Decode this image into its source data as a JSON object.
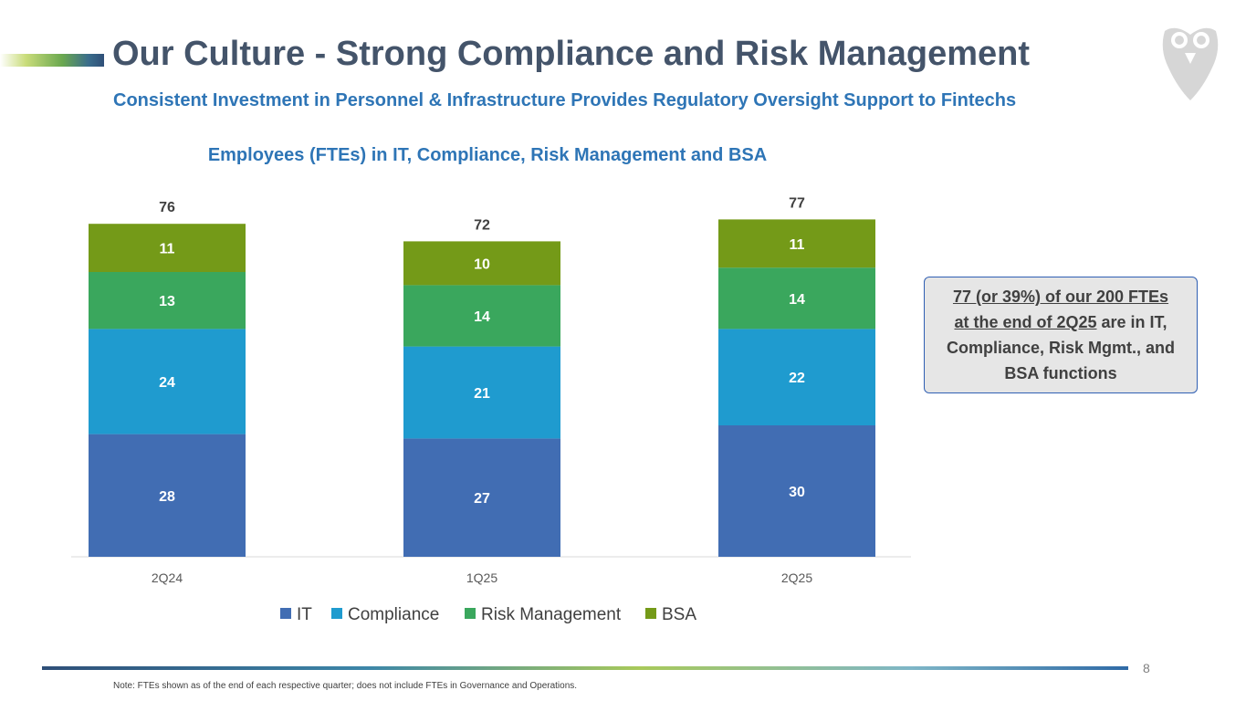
{
  "header": {
    "title": "Our Culture - Strong Compliance and Risk Management",
    "subtitle": "Consistent Investment in Personnel & Infrastructure Provides Regulatory Oversight Support to Fintechs"
  },
  "callout": {
    "line1": "77 (or 39%) of our 200 FTEs",
    "line2": "at the end of 2Q25",
    "line2_rest": " are in IT,",
    "line3": "Compliance, Risk Mgmt., and",
    "line4": "BSA functions"
  },
  "footer": {
    "page_number": "8",
    "note": "Note: FTEs shown as of the end of each respective quarter; does not include FTEs in Governance and Operations."
  },
  "chart_data": {
    "type": "bar",
    "stacked": true,
    "title": "Employees (FTEs) in IT, Compliance, Risk Management and BSA",
    "categories": [
      "2Q24",
      "1Q25",
      "2Q25"
    ],
    "totals": [
      76,
      72,
      77
    ],
    "series": [
      {
        "name": "IT",
        "values": [
          28,
          27,
          30
        ],
        "color": "#416db3"
      },
      {
        "name": "Compliance",
        "values": [
          24,
          21,
          22
        ],
        "color": "#1f9bcf"
      },
      {
        "name": "Risk Management",
        "values": [
          13,
          14,
          14
        ],
        "color": "#3aa75d"
      },
      {
        "name": "BSA",
        "values": [
          11,
          10,
          11
        ],
        "color": "#749a18"
      }
    ],
    "legend_position": "bottom",
    "xlabel": "",
    "ylabel": ""
  }
}
